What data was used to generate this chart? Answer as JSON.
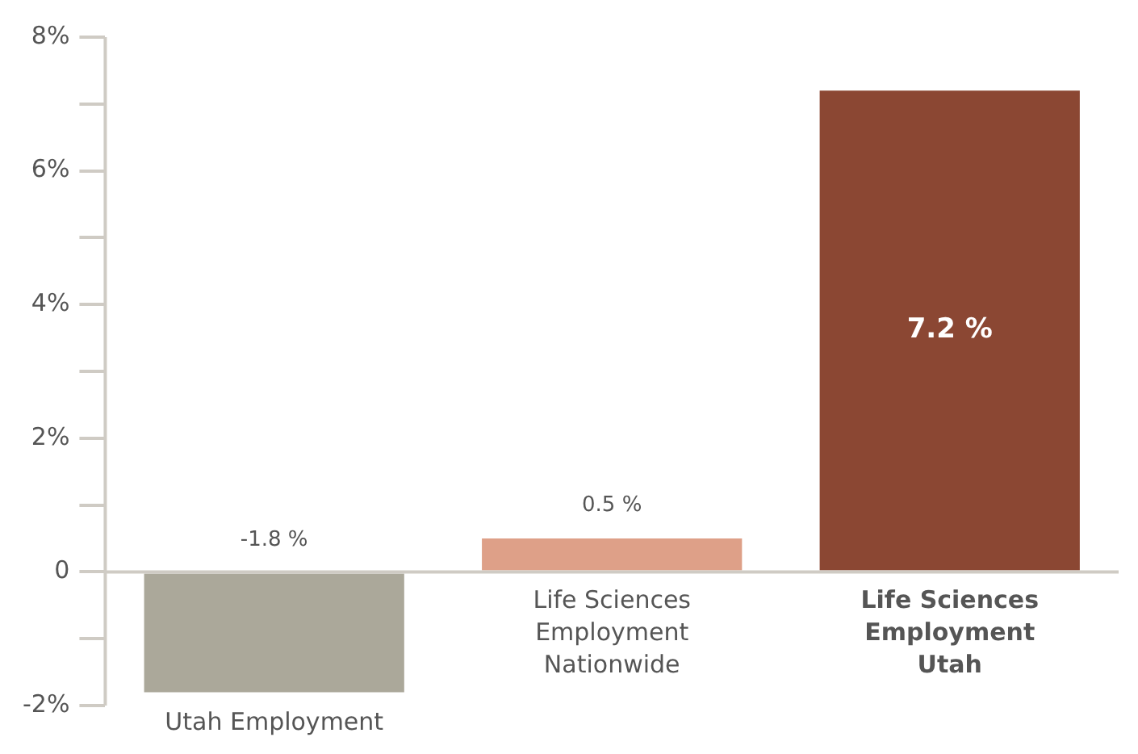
{
  "chart_data": {
    "type": "bar",
    "categories": [
      "Utah Employment",
      "Life Sciences Employment Nationwide",
      "Life Sciences Employment Utah"
    ],
    "values": [
      -1.8,
      0.5,
      7.2
    ],
    "colors": [
      "#aba89a",
      "#dea088",
      "#8b4733"
    ],
    "value_labels": [
      "-1.8 %",
      "0.5 %",
      "7.2 %"
    ],
    "ylim": [
      -2,
      8
    ],
    "yticks": [
      {
        "value": -2,
        "label": "-2%"
      },
      {
        "value": -1,
        "label": null
      },
      0,
      {
        "value": 1,
        "label": null
      },
      {
        "value": 2,
        "label": "2%"
      },
      {
        "value": 3,
        "label": null
      },
      {
        "value": 4,
        "label": "4%"
      },
      {
        "value": 5,
        "label": null
      },
      {
        "value": 6,
        "label": "6%"
      },
      {
        "value": 7,
        "label": null
      },
      {
        "value": 8,
        "label": "8%"
      }
    ],
    "grid": false,
    "legend": false
  }
}
